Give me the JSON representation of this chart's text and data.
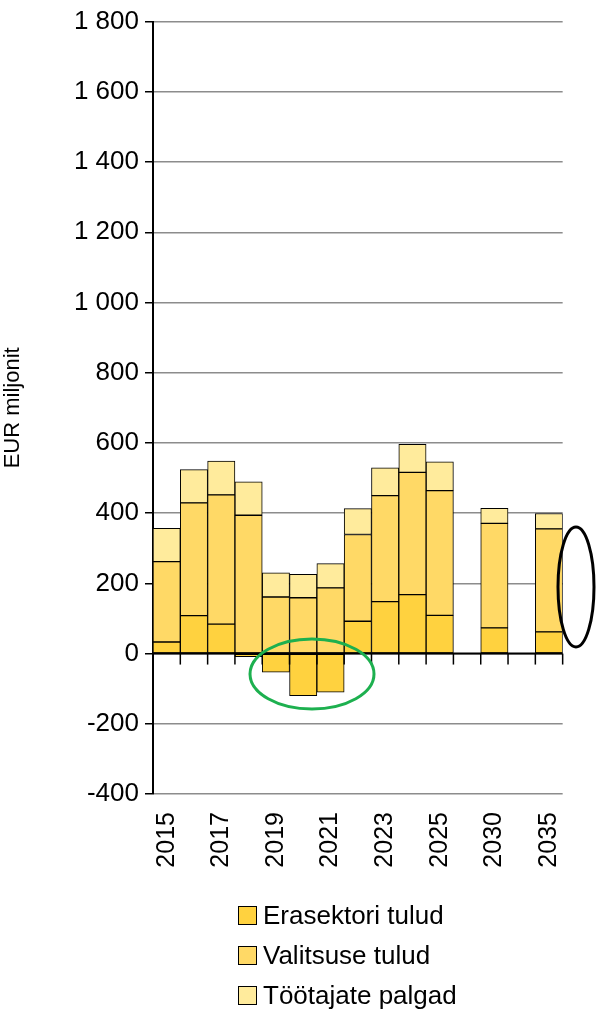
{
  "chart_data": {
    "type": "bar",
    "stacked": true,
    "ylabel": "EUR miljonit",
    "categories": [
      "2015",
      null,
      "2017",
      null,
      "2019",
      null,
      "2021",
      null,
      "2023",
      null,
      "2025",
      null,
      "2030",
      null,
      "2035"
    ],
    "series": [
      {
        "name": "Erasektori tulud",
        "color": "#ffd23f",
        "values": [
          33,
          108,
          84,
          -9,
          -53,
          -120,
          -110,
          92,
          148,
          168,
          109,
          null,
          73,
          null,
          62
        ]
      },
      {
        "name": "Valitsuse tulud",
        "color": "#ffd966",
        "values": [
          229,
          321,
          368,
          394,
          161,
          159,
          187,
          247,
          302,
          348,
          355,
          null,
          298,
          null,
          293
        ]
      },
      {
        "name": "Töötajate palgad",
        "color": "#ffeb9c",
        "values": [
          95,
          95,
          96,
          95,
          69,
          67,
          69,
          74,
          79,
          80,
          82,
          null,
          43,
          null,
          44
        ]
      }
    ],
    "ylim": [
      -400,
      1800
    ],
    "yticks": [
      -400,
      -200,
      0,
      200,
      400,
      600,
      800,
      {
        "value": 1000,
        "label": "1 000"
      },
      {
        "value": 1200,
        "label": "1 200"
      },
      {
        "value": 1400,
        "label": "1 400"
      },
      {
        "value": 1600,
        "label": "1 600"
      },
      {
        "value": 1800,
        "label": "1 800"
      }
    ],
    "grid": "y",
    "legend": "bottom"
  }
}
